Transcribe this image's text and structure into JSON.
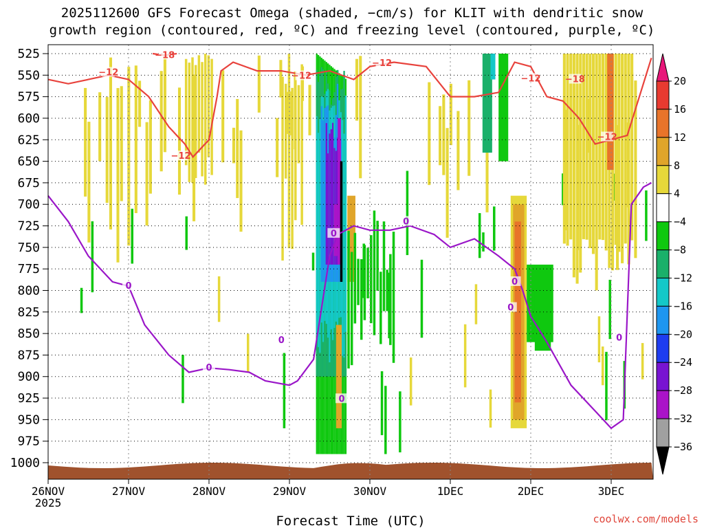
{
  "chart_data": {
    "type": "heatmap",
    "title_line1": "2025112600 GFS Forecast Omega (shaded, −cm/s) for KLIT with dendritic snow",
    "title_line2": "growth region (contoured, red, ºC) and freezing level (contoured, purple, ºC)",
    "xlabel": "Forecast Time (UTC)",
    "ylabel": "",
    "credit": "coolwx.com/models",
    "y_axis": {
      "unit": "hPa",
      "scale": "inverted",
      "range": [
        1000,
        525
      ],
      "ticks": [
        "525",
        "550",
        "575",
        "600",
        "625",
        "650",
        "675",
        "700",
        "725",
        "750",
        "775",
        "800",
        "825",
        "850",
        "875",
        "900",
        "925",
        "950",
        "975",
        "1000"
      ]
    },
    "x_axis": {
      "range_days": [
        "26NOV 00Z",
        "3DEC ~12Z"
      ],
      "ticks": [
        {
          "label": "26NOV",
          "day": 0,
          "sub": "2025"
        },
        {
          "label": "27NOV",
          "day": 1
        },
        {
          "label": "28NOV",
          "day": 2
        },
        {
          "label": "29NOV",
          "day": 3
        },
        {
          "label": "30NOV",
          "day": 4
        },
        {
          "label": "1DEC",
          "day": 5
        },
        {
          "label": "2DEC",
          "day": 6
        },
        {
          "label": "3DEC",
          "day": 7
        }
      ]
    },
    "colorbar": {
      "labels": [
        "20",
        "16",
        "12",
        "8",
        "4",
        "−4",
        "−8",
        "−12",
        "−16",
        "−20",
        "−24",
        "−28",
        "−32",
        "−36"
      ],
      "colors_top_to_bottom": [
        "#e8177a",
        "#e83a30",
        "#e8742a",
        "#e0a52a",
        "#e6d83a",
        "#ffffff",
        "#0fc80f",
        "#1ab06a",
        "#14c8c8",
        "#1e96f0",
        "#1e3cf0",
        "#7814d2",
        "#aa14c8",
        "#a0a0a0",
        "#000000"
      ],
      "grid": "dotted"
    },
    "omega_regions": [
      {
        "day_start": 3.33,
        "day_end": 3.68,
        "p_top": 525,
        "p_bot": 980,
        "level": "negative",
        "min_cm_s": -36
      },
      {
        "day_start": 3.62,
        "day_end": 3.66,
        "p_top": 600,
        "p_bot": 780,
        "level": "core",
        "min_cm_s": -36
      },
      {
        "day_start": 3.0,
        "day_end": 3.12,
        "p_top": 525,
        "p_bot": 720,
        "level": "positive",
        "max_cm_s": 8
      },
      {
        "day_start": 1.75,
        "day_end": 1.95,
        "p_top": 540,
        "p_bot": 700,
        "level": "positive",
        "max_cm_s": 8
      },
      {
        "day_start": 0.63,
        "day_end": 0.72,
        "p_top": 560,
        "p_bot": 640,
        "level": "positive",
        "max_cm_s": 8
      },
      {
        "day_start": 5.75,
        "day_end": 5.95,
        "p_top": 690,
        "p_bot": 960,
        "level": "positive",
        "max_cm_s": 14
      },
      {
        "day_start": 5.95,
        "day_end": 6.3,
        "p_top": 770,
        "p_bot": 860,
        "level": "negative",
        "min_cm_s": -8
      },
      {
        "day_start": 5.6,
        "day_end": 5.8,
        "p_top": 525,
        "p_bot": 650,
        "level": "negative",
        "min_cm_s": -12
      },
      {
        "day_start": 6.4,
        "day_end": 7.2,
        "p_top": 525,
        "p_bot": 760,
        "level": "positive",
        "max_cm_s": 12
      }
    ],
    "series": [
      {
        "name": "dendritic growth −12ºC",
        "type": "contour",
        "color": "#e8423c",
        "points_day_hpa": [
          [
            0,
            555
          ],
          [
            0.25,
            560
          ],
          [
            0.5,
            555
          ],
          [
            0.75,
            550
          ],
          [
            1,
            555
          ],
          [
            1.25,
            575
          ],
          [
            1.5,
            610
          ],
          [
            1.7,
            630
          ],
          [
            1.8,
            645
          ],
          [
            2,
            625
          ],
          [
            2.1,
            575
          ],
          [
            2.15,
            545
          ],
          [
            2.3,
            535
          ],
          [
            2.6,
            545
          ],
          [
            2.9,
            545
          ],
          [
            3.2,
            550
          ],
          [
            3.5,
            545
          ],
          [
            3.8,
            555
          ],
          [
            4.0,
            540
          ],
          [
            4.3,
            535
          ],
          [
            4.7,
            540
          ],
          [
            5.0,
            575
          ],
          [
            5.3,
            575
          ],
          [
            5.6,
            570
          ],
          [
            5.8,
            535
          ],
          [
            6.0,
            540
          ],
          [
            6.2,
            575
          ],
          [
            6.4,
            580
          ],
          [
            6.6,
            600
          ],
          [
            6.8,
            630
          ],
          [
            7.2,
            620
          ],
          [
            7.5,
            530
          ]
        ],
        "labels": [
          {
            "text": "−12",
            "day": 0.75,
            "hpa": 547
          },
          {
            "text": "−12",
            "day": 3.15,
            "hpa": 551
          },
          {
            "text": "−12",
            "day": 4.15,
            "hpa": 536
          },
          {
            "text": "−12",
            "day": 6.0,
            "hpa": 554
          },
          {
            "text": "−12",
            "day": 1.65,
            "hpa": 644
          },
          {
            "text": "−12",
            "day": 6.95,
            "hpa": 622
          }
        ]
      },
      {
        "name": "dendritic growth −18ºC",
        "type": "contour",
        "color": "#e8423c",
        "points_day_hpa": [
          [
            1.3,
            525
          ],
          [
            1.45,
            527
          ],
          [
            1.6,
            525
          ]
        ],
        "labels": [
          {
            "text": "−18",
            "day": 1.45,
            "hpa": 527
          },
          {
            "text": "−18",
            "day": 6.55,
            "hpa": 555
          }
        ]
      },
      {
        "name": "freezing level 0ºC",
        "type": "contour",
        "color": "#9a16c8",
        "points_day_hpa": [
          [
            0,
            690
          ],
          [
            0.25,
            720
          ],
          [
            0.5,
            760
          ],
          [
            0.8,
            790
          ],
          [
            1.0,
            795
          ],
          [
            1.2,
            840
          ],
          [
            1.5,
            875
          ],
          [
            1.75,
            895
          ],
          [
            2.0,
            890
          ],
          [
            2.25,
            892
          ],
          [
            2.5,
            895
          ],
          [
            2.7,
            905
          ],
          [
            3.0,
            910
          ],
          [
            3.1,
            905
          ],
          [
            3.3,
            880
          ],
          [
            3.5,
            760
          ],
          [
            3.6,
            735
          ],
          [
            3.8,
            725
          ],
          [
            4.0,
            730
          ],
          [
            4.25,
            730
          ],
          [
            4.5,
            725
          ],
          [
            4.8,
            735
          ],
          [
            5.0,
            750
          ],
          [
            5.3,
            740
          ],
          [
            5.6,
            760
          ],
          [
            5.8,
            775
          ],
          [
            5.9,
            800
          ],
          [
            6.0,
            830
          ],
          [
            6.2,
            860
          ],
          [
            6.5,
            910
          ],
          [
            6.8,
            940
          ],
          [
            7.0,
            960
          ],
          [
            7.15,
            950
          ],
          [
            7.25,
            700
          ],
          [
            7.4,
            680
          ],
          [
            7.5,
            675
          ]
        ],
        "labels": [
          {
            "text": "0",
            "day": 1.0,
            "hpa": 795
          },
          {
            "text": "0",
            "day": 2.0,
            "hpa": 890
          },
          {
            "text": "0",
            "day": 2.9,
            "hpa": 858
          },
          {
            "text": "0",
            "day": 3.55,
            "hpa": 734
          },
          {
            "text": "0",
            "day": 4.45,
            "hpa": 720
          },
          {
            "text": "0",
            "day": 5.8,
            "hpa": 790
          },
          {
            "text": "0",
            "day": 5.75,
            "hpa": 820
          },
          {
            "text": "0",
            "day": 3.65,
            "hpa": 926
          },
          {
            "text": "0",
            "day": 7.1,
            "hpa": 855
          }
        ]
      }
    ],
    "terrain": {
      "color": "#a0522d",
      "surface_hpa": 1005
    }
  }
}
